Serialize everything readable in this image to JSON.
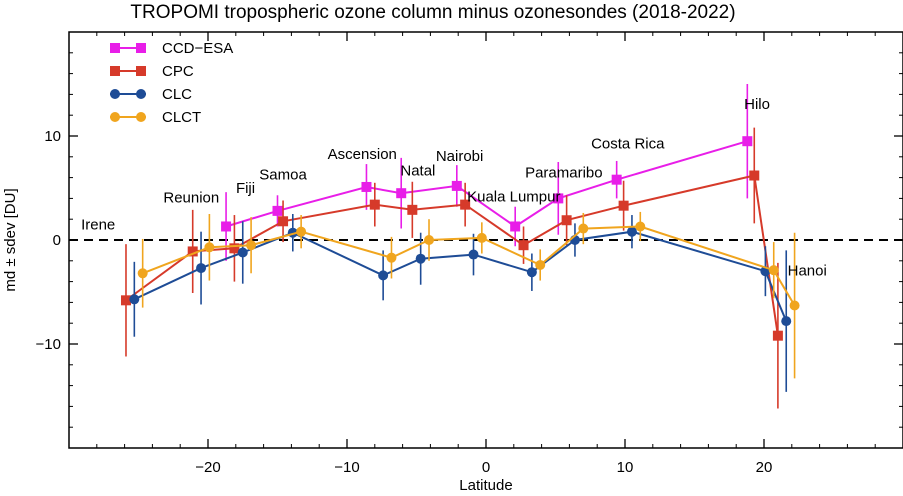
{
  "chart_data": {
    "type": "line",
    "title": "TROPOMI tropospheric ozone column minus ozonesondes (2018-2022)",
    "xlabel": "Latitude",
    "ylabel": "md ± sdev [DU]",
    "xlim": [
      -30,
      30
    ],
    "ylim": [
      -20,
      20
    ],
    "xticks": [
      -20,
      -10,
      0,
      10,
      20
    ],
    "yticks": [
      -10,
      0,
      10
    ],
    "xtick_labels": [
      "−20",
      "−10",
      "0",
      "10",
      "20"
    ],
    "ytick_labels": [
      "−10",
      "0",
      "10"
    ],
    "zero_line": "dashed",
    "legend_position": "top-left",
    "stations": [
      {
        "name": "Irene",
        "lat": -25.9
      },
      {
        "name": "Reunion",
        "lat": -21.1
      },
      {
        "name": "Fiji",
        "lat": -18.1
      },
      {
        "name": "Samoa",
        "lat": -14.2
      },
      {
        "name": "Ascension",
        "lat": -8.0
      },
      {
        "name": "Natal",
        "lat": -5.8
      },
      {
        "name": "Nairobi",
        "lat": -1.3
      },
      {
        "name": "Kuala Lumpur",
        "lat": 2.7
      },
      {
        "name": "Paramaribo",
        "lat": 5.8
      },
      {
        "name": "Costa Rica",
        "lat": 9.9
      },
      {
        "name": "Hilo",
        "lat": 19.7
      },
      {
        "name": "Hanoi",
        "lat": 21.0
      }
    ],
    "series": [
      {
        "name": "CCD−ESA",
        "color": "#e81ee8",
        "marker": "square",
        "points": [
          {
            "x": -18.7,
            "y": 1.3,
            "err": 3.3
          },
          {
            "x": -15.0,
            "y": 2.8,
            "err": 1.5
          },
          {
            "x": -8.6,
            "y": 5.1,
            "err": 2.2
          },
          {
            "x": -6.1,
            "y": 4.5,
            "err": 3.4
          },
          {
            "x": -2.1,
            "y": 5.2,
            "err": 2.0
          },
          {
            "x": 2.1,
            "y": 1.3,
            "err": 1.9
          },
          {
            "x": 5.2,
            "y": 4.0,
            "err": 3.5
          },
          {
            "x": 9.4,
            "y": 5.8,
            "err": 1.8
          },
          {
            "x": 18.8,
            "y": 9.5,
            "err": 5.5
          }
        ]
      },
      {
        "name": "CPC",
        "color": "#d63a2a",
        "marker": "square",
        "points": [
          {
            "x": -25.9,
            "y": -5.8,
            "err": 5.4
          },
          {
            "x": -21.1,
            "y": -1.1,
            "err": 4.0
          },
          {
            "x": -18.1,
            "y": -0.8,
            "err": 3.2
          },
          {
            "x": -14.6,
            "y": 1.8,
            "err": 2.0
          },
          {
            "x": -8.0,
            "y": 3.4,
            "err": 2.1
          },
          {
            "x": -5.3,
            "y": 2.9,
            "err": 2.7
          },
          {
            "x": -1.5,
            "y": 3.4,
            "err": 2.1
          },
          {
            "x": 2.7,
            "y": -0.5,
            "err": 1.8
          },
          {
            "x": 5.8,
            "y": 1.9,
            "err": 2.4
          },
          {
            "x": 9.9,
            "y": 3.3,
            "err": 2.4
          },
          {
            "x": 19.3,
            "y": 6.2,
            "err": 4.6
          },
          {
            "x": 21.0,
            "y": -9.2,
            "err": 7.0
          }
        ]
      },
      {
        "name": "CLC",
        "color": "#1e4c96",
        "marker": "circle",
        "points": [
          {
            "x": -25.3,
            "y": -5.7,
            "err": 3.6
          },
          {
            "x": -20.5,
            "y": -2.7,
            "err": 3.5
          },
          {
            "x": -17.5,
            "y": -1.2,
            "err": 3.0
          },
          {
            "x": -13.9,
            "y": 0.7,
            "err": 1.8
          },
          {
            "x": -7.4,
            "y": -3.4,
            "err": 2.4
          },
          {
            "x": -4.7,
            "y": -1.8,
            "err": 2.5
          },
          {
            "x": -0.9,
            "y": -1.4,
            "err": 2.0
          },
          {
            "x": 3.3,
            "y": -3.1,
            "err": 1.8
          },
          {
            "x": 6.4,
            "y": 0.0,
            "err": 1.6
          },
          {
            "x": 10.5,
            "y": 0.8,
            "err": 1.6
          },
          {
            "x": 20.1,
            "y": -3.0,
            "err": 2.4
          },
          {
            "x": 21.6,
            "y": -7.8,
            "err": 6.8
          }
        ]
      },
      {
        "name": "CLCT",
        "color": "#f0a51e",
        "marker": "circle",
        "points": [
          {
            "x": -24.7,
            "y": -3.2,
            "err": 3.3
          },
          {
            "x": -19.9,
            "y": -0.7,
            "err": 3.2
          },
          {
            "x": -16.9,
            "y": -0.5,
            "err": 2.7
          },
          {
            "x": -13.3,
            "y": 0.8,
            "err": 1.6
          },
          {
            "x": -6.8,
            "y": -1.7,
            "err": 2.0
          },
          {
            "x": -4.1,
            "y": 0.0,
            "err": 2.0
          },
          {
            "x": -0.3,
            "y": 0.2,
            "err": 1.5
          },
          {
            "x": 3.9,
            "y": -2.4,
            "err": 1.5
          },
          {
            "x": 7.0,
            "y": 1.1,
            "err": 1.5
          },
          {
            "x": 11.1,
            "y": 1.3,
            "err": 1.4
          },
          {
            "x": 20.7,
            "y": -2.9,
            "err": 2.7
          },
          {
            "x": 22.2,
            "y": -6.3,
            "err": 7.0
          }
        ]
      }
    ]
  }
}
